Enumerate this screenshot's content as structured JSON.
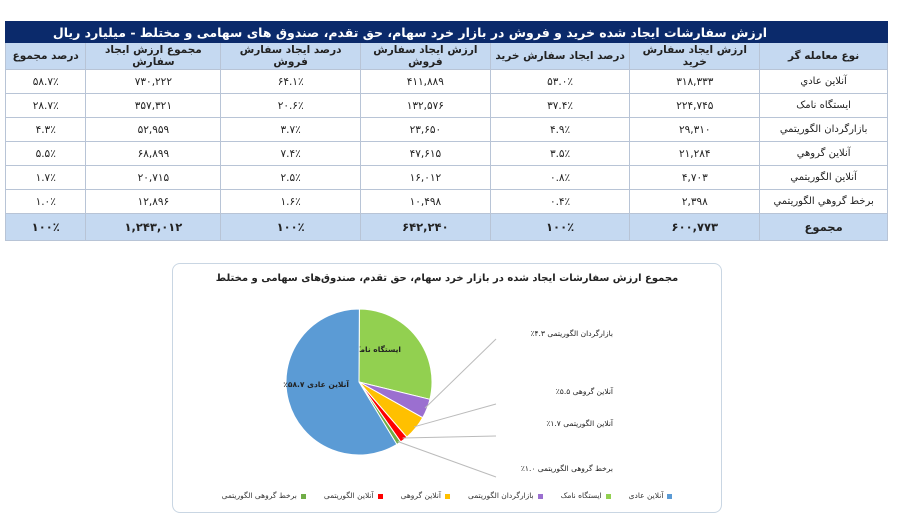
{
  "table": {
    "title": "ارزش سفارشات ایجاد شده خرید و فروش در بازار خرد سهام، حق تقدم، صندوق های سهامی و مختلط - میلیارد ریال",
    "headers": [
      "نوع معامله گر",
      "ارزش ایجاد سفارش خرید",
      "درصد ایجاد سفارش خرید",
      "ارزش ایجاد سفارش فروش",
      "درصد ایجاد سفارش فروش",
      "مجموع ارزش ایجاد سفارش",
      "درصد مجموع"
    ],
    "rows": [
      [
        "آنلاین عادي",
        "۳۱۸,۳۳۳",
        "۵۳.۰٪",
        "۴۱۱,۸۸۹",
        "۶۴.۱٪",
        "۷۳۰,۲۲۲",
        "۵۸.۷٪"
      ],
      [
        "ایستگاه نامک",
        "۲۲۴,۷۴۵",
        "۳۷.۴٪",
        "۱۳۲,۵۷۶",
        "۲۰.۶٪",
        "۳۵۷,۳۲۱",
        "۲۸.۷٪"
      ],
      [
        "بازارگردان الگوریتمي",
        "۲۹,۳۱۰",
        "۴.۹٪",
        "۲۳,۶۵۰",
        "۳.۷٪",
        "۵۲,۹۵۹",
        "۴.۳٪"
      ],
      [
        "آنلاین گروهي",
        "۲۱,۲۸۴",
        "۳.۵٪",
        "۴۷,۶۱۵",
        "۷.۴٪",
        "۶۸,۸۹۹",
        "۵.۵٪"
      ],
      [
        "آنلاین الگوریتمي",
        "۴,۷۰۳",
        "۰.۸٪",
        "۱۶,۰۱۲",
        "۲.۵٪",
        "۲۰,۷۱۵",
        "۱.۷٪"
      ],
      [
        "برخط گروهي الگوریتمي",
        "۲,۳۹۸",
        "۰.۴٪",
        "۱۰,۴۹۸",
        "۱.۶٪",
        "۱۲,۸۹۶",
        "۱.۰٪"
      ]
    ],
    "total": [
      "مجموع",
      "۶۰۰,۷۷۳",
      "۱۰۰٪",
      "۶۴۲,۲۴۰",
      "۱۰۰٪",
      "۱,۲۴۳,۰۱۲",
      "۱۰۰٪"
    ]
  },
  "chart_data": {
    "type": "pie",
    "title": "مجموع ارزش سفارشات ایجاد شده در بازار خرد سهام، حق تقدم، صندوق‌های سهامی و مختلط",
    "slices": [
      {
        "name": "ایستگاه نامک",
        "value": 28.7,
        "label": "ایستگاه نامک ۲۸.۷٪",
        "color": "#92d050"
      },
      {
        "name": "بازارگردان الگوریتمی",
        "value": 4.3,
        "label": "بازارگردان الگوریتمی ۴.۳٪",
        "color": "#9b6fd0"
      },
      {
        "name": "آنلاین گروهی",
        "value": 5.5,
        "label": "آنلاین گروهی ۵.۵٪",
        "color": "#ffc000"
      },
      {
        "name": "آنلاین الگوریتمی",
        "value": 1.7,
        "label": "آنلاین الگوریتمی ۱.۷٪",
        "color": "#ff0000"
      },
      {
        "name": "برخط گروهی الگوریتمی",
        "value": 1.0,
        "label": "برخط گروهی الگوریتمی ۱.۰٪",
        "color": "#70ad47"
      },
      {
        "name": "آنلاین عادی",
        "value": 58.7,
        "label": "آنلاین عادی ۵۸.۷٪",
        "color": "#5b9bd5"
      }
    ],
    "legend": [
      "آنلاین عادی",
      "ایستگاه نامک",
      "بازارگردان الگوریتمی",
      "آنلاین گروهی",
      "آنلاین الگوریتمی",
      "برخط گروهی الگوریتمی"
    ],
    "legend_position": "bottom"
  }
}
